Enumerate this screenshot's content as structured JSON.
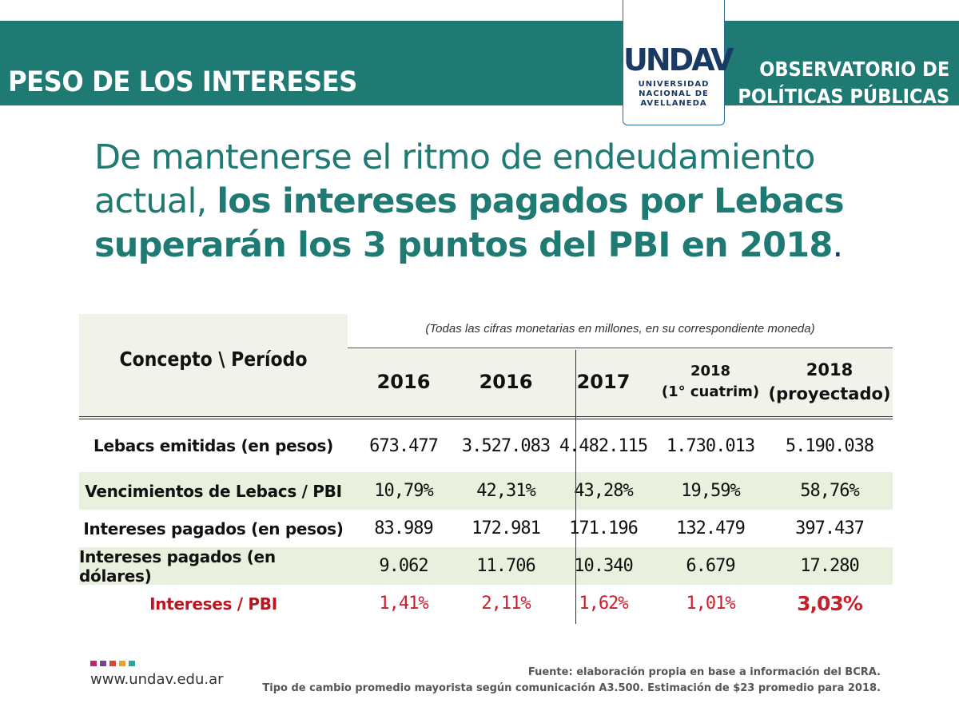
{
  "header": {
    "title": "PESO DE LOS INTERESES",
    "org_line1": "OBSERVATORIO DE",
    "org_line2": "POLÍTICAS PÚBLICAS",
    "logo_mark": "UNDAV",
    "logo_line1": "UNIVERSIDAD",
    "logo_line2": "NACIONAL DE",
    "logo_line3": "AVELLANEDA"
  },
  "headline": {
    "normal": "De mantenerse el ritmo de endeudamiento actual, ",
    "bold": "los intereses pagados por Lebacs superarán los 3 puntos del PBI en 2018",
    "end": "."
  },
  "table": {
    "concept_header": "Concepto \\ Período",
    "note": "(Todas las cifras monetarias en millones, en su correspondiente moneda)",
    "columns": [
      {
        "line1": "2016",
        "line2": ""
      },
      {
        "line1": "2016",
        "line2": ""
      },
      {
        "line1": "2017",
        "line2": ""
      },
      {
        "line1": "2018",
        "line2": "(1° cuatrim)"
      },
      {
        "line1": "2018",
        "line2": "(proyectado)"
      }
    ],
    "rows": [
      {
        "label": "Lebacs emitidas (en pesos)",
        "values": [
          "673.477",
          "3.527.083",
          "4.482.115",
          "1.730.013",
          "5.190.038"
        ]
      },
      {
        "label": "Vencimientos de Lebacs / PBI",
        "values": [
          "10,79%",
          "42,31%",
          "43,28%",
          "19,59%",
          "58,76%"
        ]
      },
      {
        "label": "Intereses pagados (en pesos)",
        "values": [
          "83.989",
          "172.981",
          "171.196",
          "132.479",
          "397.437"
        ]
      },
      {
        "label": "Intereses pagados (en dólares)",
        "values": [
          "9.062",
          "11.706",
          "10.340",
          "6.679",
          "17.280"
        ]
      },
      {
        "label": "Intereses / PBI",
        "values": [
          "1,41%",
          "2,11%",
          "1,62%",
          "1,01%",
          "3,03%"
        ]
      }
    ]
  },
  "footer": {
    "site": "www.undav.edu.ar",
    "source_line1": "Fuente: elaboración propia en base a información del BCRA.",
    "source_line2": "Tipo de cambio promedio mayorista según comunicación A3.500. Estimación de $23 promedio para 2018.",
    "dot_colors": [
      "#c8206e",
      "#7b3f98",
      "#e8412b",
      "#f0a020",
      "#2aa7a0"
    ]
  },
  "colors": {
    "brand": "#1f7a73",
    "navy": "#1b3a63",
    "shade": "#e9f0dd",
    "accent_red": "#c8202a"
  }
}
